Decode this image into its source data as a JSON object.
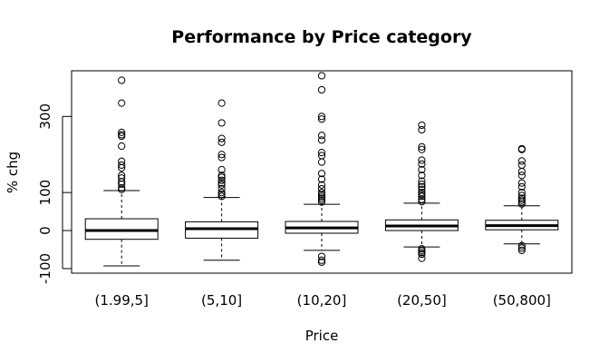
{
  "chart_data": {
    "type": "boxplot",
    "title": "Performance by Price category",
    "xlabel": "Price",
    "ylabel": "% chg",
    "ylim": [
      -112,
      420
    ],
    "yticks": [
      -100,
      0,
      100,
      300
    ],
    "ytick_labels": [
      "-100",
      "0",
      "100",
      "300"
    ],
    "grid": false,
    "categories": [
      "(1.99,5]",
      "(5,10]",
      "(10,20]",
      "(20,50]",
      "(50,800]"
    ],
    "boxes": [
      {
        "category": "(1.99,5]",
        "whisker_low": -93,
        "q1": -23,
        "median": 0,
        "q3": 31,
        "whisker_high": 105,
        "outliers": [
          395,
          335,
          258,
          252,
          248,
          222,
          182,
          172,
          165,
          145,
          138,
          128,
          122,
          112,
          108
        ]
      },
      {
        "category": "(5,10]",
        "whisker_low": -78,
        "q1": -20,
        "median": 5,
        "q3": 23,
        "whisker_high": 87,
        "outliers": [
          335,
          283,
          242,
          232,
          200,
          192,
          160,
          145,
          140,
          132,
          125,
          120,
          110,
          100,
          95,
          90
        ]
      },
      {
        "category": "(10,20]",
        "whisker_low": -52,
        "q1": -7,
        "median": 7,
        "q3": 24,
        "whisker_high": 69,
        "outliers": [
          407,
          370,
          300,
          293,
          250,
          238,
          205,
          197,
          180,
          150,
          135,
          120,
          110,
          100,
          95,
          90,
          85,
          80,
          75,
          -68,
          -78,
          -83
        ]
      },
      {
        "category": "(20,50]",
        "whisker_low": -43,
        "q1": 0,
        "median": 12,
        "q3": 28,
        "whisker_high": 72,
        "outliers": [
          277,
          265,
          220,
          213,
          185,
          175,
          160,
          145,
          130,
          122,
          115,
          108,
          100,
          95,
          90,
          82,
          76,
          -48,
          -53,
          -58,
          -62,
          -73
        ]
      },
      {
        "category": "(50,800]",
        "whisker_low": -35,
        "q1": 2,
        "median": 13,
        "q3": 27,
        "whisker_high": 65,
        "outliers": [
          215,
          213,
          183,
          172,
          155,
          145,
          125,
          115,
          100,
          92,
          85,
          80,
          75,
          70,
          -40,
          -46,
          -52
        ]
      }
    ]
  }
}
